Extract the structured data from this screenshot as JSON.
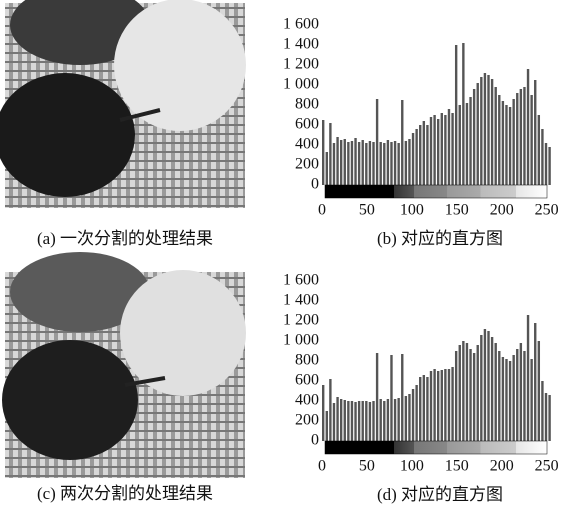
{
  "images": [
    {
      "caption": "(a) 一次分割的处理结果"
    },
    {
      "caption": "(c) 两次分割的处理结果"
    }
  ],
  "chart_data": [
    {
      "type": "bar",
      "title": "(b) 对应的直方图",
      "color": "#555555",
      "x": [
        0,
        4,
        8,
        12,
        16,
        20,
        24,
        28,
        32,
        36,
        40,
        44,
        48,
        52,
        56,
        60,
        64,
        68,
        72,
        76,
        80,
        84,
        88,
        92,
        96,
        100,
        104,
        108,
        112,
        116,
        120,
        124,
        128,
        132,
        136,
        140,
        144,
        148,
        152,
        156,
        160,
        164,
        168,
        172,
        176,
        180,
        184,
        188,
        192,
        196,
        200,
        204,
        208,
        212,
        216,
        220,
        224,
        228,
        232,
        236,
        240,
        244,
        248,
        252
      ],
      "values": [
        650,
        330,
        620,
        420,
        480,
        450,
        460,
        430,
        440,
        470,
        430,
        450,
        420,
        440,
        430,
        860,
        430,
        420,
        450,
        430,
        440,
        420,
        850,
        440,
        460,
        520,
        560,
        600,
        640,
        600,
        680,
        700,
        660,
        720,
        700,
        760,
        720,
        1400,
        800,
        1420,
        820,
        880,
        960,
        1020,
        1080,
        1120,
        1100,
        1060,
        980,
        900,
        840,
        800,
        780,
        860,
        920,
        960,
        980,
        1160,
        900,
        1050,
        700,
        560,
        420,
        380
      ],
      "xlim": [
        0,
        256
      ],
      "xticks": [
        0,
        50,
        100,
        150,
        200,
        250
      ],
      "ylim": [
        0,
        1650
      ],
      "yticks": [
        0,
        200,
        400,
        600,
        800,
        {
          "value": 1000,
          "label": "1 000"
        },
        {
          "value": 1200,
          "label": "1 200"
        },
        {
          "value": 1400,
          "label": "1 400"
        },
        {
          "value": 1600,
          "label": "1 600"
        }
      ]
    },
    {
      "type": "bar",
      "title": "(d) 对应的直方图",
      "color": "#555555",
      "x": [
        0,
        4,
        8,
        12,
        16,
        20,
        24,
        28,
        32,
        36,
        40,
        44,
        48,
        52,
        56,
        60,
        64,
        68,
        72,
        76,
        80,
        84,
        88,
        92,
        96,
        100,
        104,
        108,
        112,
        116,
        120,
        124,
        128,
        132,
        136,
        140,
        144,
        148,
        152,
        156,
        160,
        164,
        168,
        172,
        176,
        180,
        184,
        188,
        192,
        196,
        200,
        204,
        208,
        212,
        216,
        220,
        224,
        228,
        232,
        236,
        240,
        244,
        248,
        252
      ],
      "values": [
        560,
        300,
        620,
        380,
        440,
        420,
        410,
        400,
        400,
        390,
        400,
        400,
        400,
        390,
        400,
        880,
        420,
        400,
        420,
        860,
        420,
        430,
        870,
        450,
        470,
        520,
        560,
        640,
        660,
        640,
        700,
        720,
        700,
        710,
        720,
        720,
        740,
        900,
        960,
        1000,
        980,
        920,
        880,
        960,
        1060,
        1120,
        1100,
        1040,
        980,
        900,
        840,
        820,
        800,
        860,
        920,
        980,
        900,
        1260,
        820,
        1180,
        1000,
        600,
        480,
        460
      ],
      "xlim": [
        0,
        256
      ],
      "xticks": [
        0,
        50,
        100,
        150,
        200,
        250
      ],
      "ylim": [
        0,
        1650
      ],
      "yticks": [
        0,
        200,
        400,
        600,
        800,
        {
          "value": 1000,
          "label": "1 000"
        },
        {
          "value": 1200,
          "label": "1 200"
        },
        {
          "value": 1400,
          "label": "1 400"
        },
        {
          "value": 1600,
          "label": "1 600"
        }
      ]
    }
  ]
}
